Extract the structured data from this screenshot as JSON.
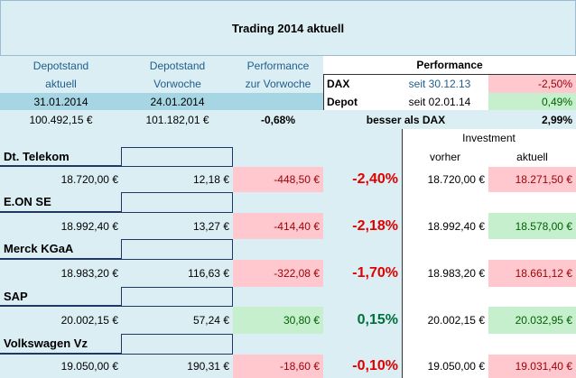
{
  "title": "Trading 2014 aktuell",
  "summary": {
    "headers": [
      [
        "Depotstand",
        "aktuell"
      ],
      [
        "Depotstand",
        "Vorwoche"
      ],
      [
        "Performance",
        "zur Vorwoche"
      ]
    ],
    "dates": [
      "31.01.2014",
      "24.01.2014"
    ],
    "values": [
      "100.492,15 €",
      "101.182,01 €",
      "-0,68%"
    ]
  },
  "performance": {
    "title": "Performance",
    "rows": [
      [
        "DAX",
        "seit 30.12.13",
        "-2,50%"
      ],
      [
        "Depot",
        "seit 02.01.14",
        "0,49%"
      ],
      [
        "besser als DAX",
        "2,99%"
      ]
    ]
  },
  "investment": {
    "title": "Investment",
    "columns": [
      "vorher",
      "aktuell"
    ]
  },
  "stocks": [
    {
      "name": "Dt. Telekom",
      "values": [
        "18.720,00 €",
        "12,18 €",
        "-448,50 €",
        "-2,40%",
        "18.720,00 €",
        "18.271,50 €"
      ]
    },
    {
      "name": "E.ON SE",
      "values": [
        "18.992,40 €",
        "13,27 €",
        "-414,40 €",
        "-2,18%",
        "18.992,40 €",
        "18.578,00 €"
      ]
    },
    {
      "name": "Merck KGaA",
      "values": [
        "18.983,20 €",
        "116,63 €",
        "-322,08 €",
        "-1,70%",
        "18.983,20 €",
        "18.661,12 €"
      ]
    },
    {
      "name": "SAP",
      "values": [
        "20.002,15 €",
        "57,24 €",
        "30,80 €",
        "0,15%",
        "20.002,15 €",
        "20.032,95 €"
      ]
    },
    {
      "name": "Volkswagen Vz",
      "values": [
        "19.050,00 €",
        "190,31 €",
        "-18,60 €",
        "-0,10%",
        "19.050,00 €",
        "19.031,40 €"
      ]
    }
  ]
}
